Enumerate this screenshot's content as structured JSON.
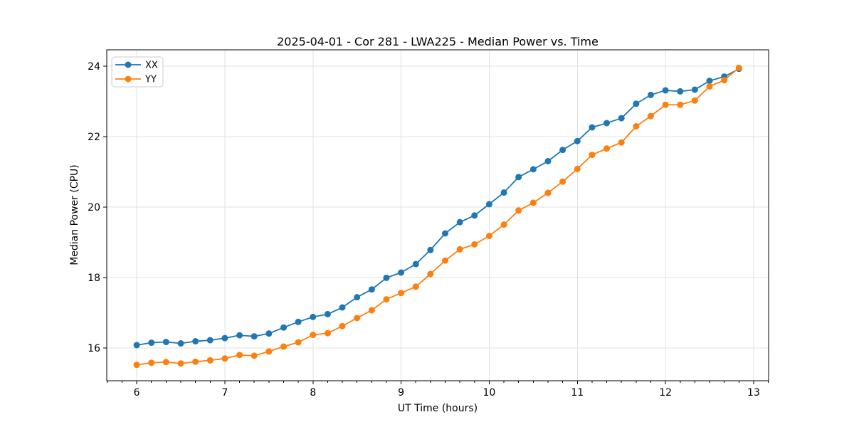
{
  "chart_data": {
    "type": "line",
    "title": "2025-04-01 - Cor 281 - LWA225 - Median Power vs. Time",
    "xlabel": "UT Time (hours)",
    "ylabel": "Median Power (CPU)",
    "xlim": [
      5.66,
      13.17
    ],
    "ylim": [
      15.07,
      24.46
    ],
    "x_major_ticks": [
      6,
      7,
      8,
      9,
      10,
      11,
      12,
      13
    ],
    "x_minor_tick_step_hours": 0.1667,
    "y_major_ticks": [
      16,
      18,
      20,
      22,
      24
    ],
    "grid": true,
    "grid_color": "#e0e0e0",
    "legend_position": "upper-left",
    "x": [
      6.0,
      6.167,
      6.333,
      6.5,
      6.667,
      6.833,
      7.0,
      7.167,
      7.333,
      7.5,
      7.667,
      7.833,
      8.0,
      8.167,
      8.333,
      8.5,
      8.667,
      8.833,
      9.0,
      9.167,
      9.333,
      9.5,
      9.667,
      9.833,
      10.0,
      10.167,
      10.333,
      10.5,
      10.667,
      10.833,
      11.0,
      11.167,
      11.333,
      11.5,
      11.667,
      11.833,
      12.0,
      12.167,
      12.333,
      12.5,
      12.667,
      12.833
    ],
    "series": [
      {
        "name": "XX",
        "color": "#1f77b4",
        "values": [
          16.08,
          16.15,
          16.17,
          16.13,
          16.19,
          16.22,
          16.28,
          16.36,
          16.33,
          16.41,
          16.58,
          16.74,
          16.88,
          16.96,
          17.15,
          17.44,
          17.66,
          17.99,
          18.14,
          18.38,
          18.78,
          19.25,
          19.57,
          19.76,
          20.08,
          20.41,
          20.85,
          21.07,
          21.3,
          21.62,
          21.87,
          22.26,
          22.38,
          22.52,
          22.93,
          23.18,
          23.31,
          23.28,
          23.33,
          23.58,
          23.7,
          23.92
        ]
      },
      {
        "name": "YY",
        "color": "#ff7f0e",
        "values": [
          15.52,
          15.58,
          15.6,
          15.56,
          15.61,
          15.65,
          15.7,
          15.8,
          15.78,
          15.9,
          16.04,
          16.16,
          16.37,
          16.42,
          16.62,
          16.85,
          17.07,
          17.38,
          17.56,
          17.74,
          18.1,
          18.48,
          18.8,
          18.94,
          19.18,
          19.5,
          19.9,
          20.12,
          20.4,
          20.72,
          21.08,
          21.48,
          21.66,
          21.83,
          22.29,
          22.58,
          22.9,
          22.9,
          23.02,
          23.42,
          23.6,
          23.95
        ]
      }
    ]
  }
}
